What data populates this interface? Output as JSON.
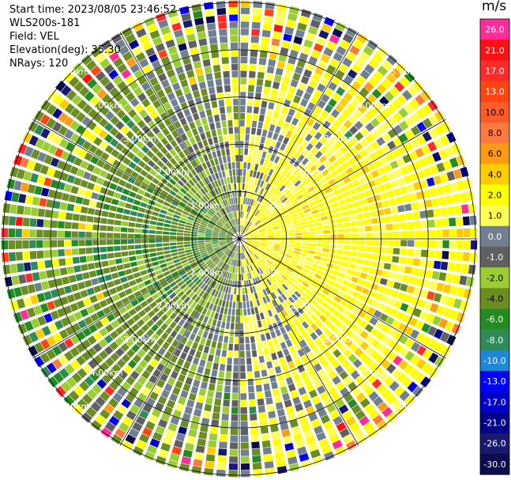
{
  "header": {
    "start_time": "Start time: 2023/08/05 23:46:52",
    "instrument": "WLS200s-181",
    "field": "Field: VEL",
    "elevation": "Elevation(deg): 35.30",
    "nrays": "NRays: 120"
  },
  "chart_data": {
    "type": "heatmap",
    "projection": "polar-ppi",
    "field": "VEL",
    "units": "m/s",
    "n_rays": 120,
    "elevation_deg": 35.3,
    "range_rings_km": [
      1.0,
      2.0,
      3.0,
      4.0,
      5.0
    ],
    "range_ring_labels": [
      "1.00km",
      "2.00km",
      "3.00km",
      "4.00km",
      "5.00km"
    ],
    "max_range_km": 5.05,
    "colorbar": {
      "unit_label": "m/s",
      "tick_labels": [
        "26.0",
        "21.0",
        "17.0",
        "13.0",
        "10.0",
        "8.0",
        "6.0",
        "4.0",
        "2.0",
        "1.0",
        "0.0",
        "-1.0",
        "-2.0",
        "-4.0",
        "-6.0",
        "-8.0",
        "-10.0",
        "-13.0",
        "-17.0",
        "-21.0",
        "-26.0",
        "-30.0"
      ],
      "bands": [
        {
          "label": "26.0",
          "color": "#ff2c9a"
        },
        {
          "label": "21.0",
          "color": "#ff1010"
        },
        {
          "label": "17.0",
          "color": "#ff2a2a"
        },
        {
          "label": "13.0",
          "color": "#ff4412"
        },
        {
          "label": "10.0",
          "color": "#ff5c2a"
        },
        {
          "label": "8.0",
          "color": "#ff7a3e"
        },
        {
          "label": "6.0",
          "color": "#ff9a14"
        },
        {
          "label": "4.0",
          "color": "#ffcc00"
        },
        {
          "label": "2.0",
          "color": "#ffff00"
        },
        {
          "label": "1.0",
          "color": "#ffff55"
        },
        {
          "label": "0.0",
          "color": "#708090"
        },
        {
          "label": "-1.0",
          "color": "#606060"
        },
        {
          "label": "-2.0",
          "color": "#9acd32"
        },
        {
          "label": "-4.0",
          "color": "#6b8e23"
        },
        {
          "label": "-6.0",
          "color": "#228b22"
        },
        {
          "label": "-8.0",
          "color": "#2e8b57"
        },
        {
          "label": "-10.0",
          "color": "#1e88d8"
        },
        {
          "label": "-13.0",
          "color": "#0000ff"
        },
        {
          "label": "-17.0",
          "color": "#0000cd"
        },
        {
          "label": "-21.0",
          "color": "#00008b"
        },
        {
          "label": "-26.0",
          "color": "#191970"
        },
        {
          "label": "-30.0",
          "color": "#0b0b50"
        }
      ]
    },
    "pattern_summary": {
      "receding_positive_sector_deg": [
        20,
        160
      ],
      "approaching_negative_sector_deg": [
        200,
        340
      ],
      "note": "Rays with positive (yellow) velocities in the east/north-east half, negative (green) velocities in the west/south-west half; near-zero grey in between; noisy multi-coloured outer gates."
    }
  }
}
